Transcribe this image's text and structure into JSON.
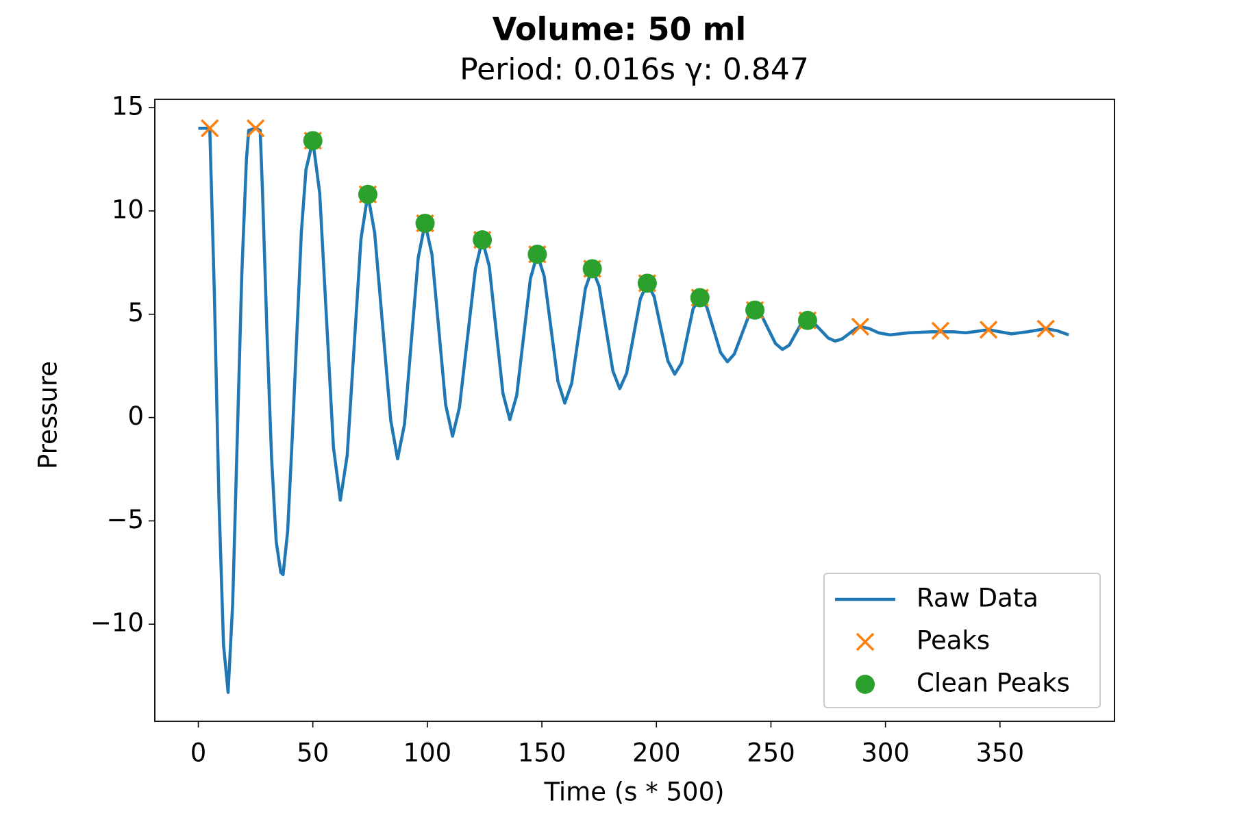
{
  "chart_data": {
    "type": "line",
    "title": "Volume: 50 ml",
    "subtitle": "Period: 0.016s γ: 0.847",
    "x_label": "Time (s * 500)",
    "y_label": "Pressure",
    "xlim": [
      -19,
      400
    ],
    "ylim": [
      -14.7,
      15.4
    ],
    "xticks": [
      0,
      50,
      100,
      150,
      200,
      250,
      300,
      350
    ],
    "yticks": [
      {
        "value": -10,
        "label": "−10"
      },
      {
        "value": -5,
        "label": "−5"
      },
      0,
      5,
      10,
      15
    ],
    "legend": "lower right",
    "series": [
      {
        "name": "Raw Data",
        "color": "#1f77b4",
        "marker": "line",
        "x": [
          0,
          3,
          5,
          7,
          9,
          11,
          13,
          15,
          17,
          19,
          21,
          22,
          25,
          27,
          28,
          30,
          32,
          34,
          36,
          37,
          39,
          41,
          43,
          45,
          47,
          50,
          53,
          56,
          59,
          62,
          65,
          68,
          71,
          74,
          77,
          80.5,
          84,
          87,
          90,
          93,
          96,
          99,
          102,
          105,
          108,
          111,
          114,
          117.5,
          121,
          124,
          127,
          130,
          133,
          136,
          139,
          142,
          145,
          148,
          151,
          154,
          157,
          160,
          163,
          166,
          169,
          172,
          175,
          178,
          181,
          184,
          187,
          190,
          193,
          196,
          199,
          202,
          205,
          208,
          211,
          213.5,
          216,
          219,
          222,
          225,
          228,
          231,
          234,
          237,
          240,
          243,
          246,
          249,
          252,
          255,
          258,
          260.5,
          263,
          266,
          269,
          272,
          275,
          278,
          281,
          284,
          287,
          289,
          293,
          297,
          302,
          310,
          320,
          330,
          335,
          345,
          355,
          362,
          370,
          375,
          380
        ],
        "values": [
          14,
          14,
          14,
          6,
          -4,
          -11,
          -13.3,
          -9,
          -1,
          7,
          12.5,
          13.9,
          14,
          13.9,
          11,
          4,
          -2,
          -6,
          -7.5,
          -7.6,
          -5.5,
          -1,
          4,
          9,
          12,
          13.4,
          10.85,
          4.7,
          -1.45,
          -4.0,
          -1.83,
          3.4,
          8.63,
          10.8,
          8.93,
          4.4,
          -0.13,
          -2.0,
          -0.33,
          3.7,
          7.73,
          9.4,
          7.89,
          4.25,
          0.61,
          -0.9,
          0.49,
          3.85,
          7.21,
          8.6,
          7.33,
          4.25,
          1.17,
          -0.1,
          1.07,
          3.9,
          6.73,
          7.9,
          6.85,
          4.3,
          1.75,
          0.7,
          1.65,
          3.95,
          6.25,
          7.2,
          6.35,
          4.3,
          2.25,
          1.4,
          2.15,
          3.95,
          5.75,
          6.5,
          5.86,
          4.3,
          2.74,
          2.1,
          2.64,
          3.95,
          5.26,
          5.8,
          5.35,
          4.25,
          3.15,
          2.7,
          3.07,
          3.95,
          4.83,
          5.2,
          4.92,
          4.25,
          3.58,
          3.3,
          3.5,
          4.0,
          4.5,
          4.7,
          4.55,
          4.2,
          3.85,
          3.7,
          3.8,
          4.05,
          4.3,
          4.4,
          4.3,
          4.1,
          4.0,
          4.1,
          4.15,
          4.15,
          4.1,
          4.25,
          4.05,
          4.15,
          4.3,
          4.2,
          4.0
        ]
      },
      {
        "name": "Peaks",
        "color": "#ff7f0e",
        "marker": "x",
        "x": [
          5,
          25,
          50,
          74,
          99,
          124,
          148,
          172,
          196,
          219,
          243,
          266,
          289,
          324,
          345,
          370
        ],
        "values": [
          14,
          14,
          13.4,
          10.8,
          9.4,
          8.6,
          7.9,
          7.2,
          6.5,
          5.8,
          5.2,
          4.7,
          4.4,
          4.2,
          4.25,
          4.3
        ]
      },
      {
        "name": "Clean Peaks",
        "color": "#2ca02c",
        "marker": "o",
        "x": [
          50,
          74,
          99,
          124,
          148,
          172,
          196,
          219,
          243,
          266
        ],
        "values": [
          13.4,
          10.8,
          9.4,
          8.6,
          7.9,
          7.2,
          6.5,
          5.8,
          5.2,
          4.7
        ]
      }
    ]
  }
}
